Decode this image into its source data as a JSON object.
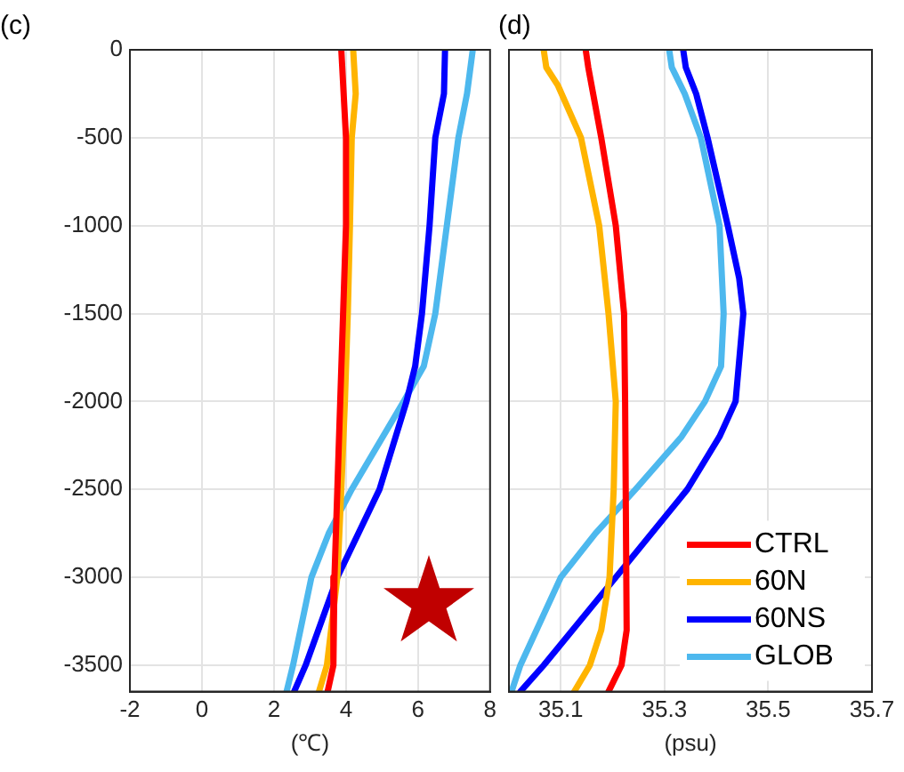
{
  "chart_data": [
    {
      "type": "line",
      "title": "(c)",
      "xlabel": "(℃)",
      "xlim": [
        -2,
        8
      ],
      "xticks": [
        -2,
        0,
        2,
        4,
        6,
        8
      ],
      "ylim": [
        -3650,
        0
      ],
      "yticks": [
        -3500,
        -3000,
        -2500,
        -2000,
        -1500,
        -1000,
        -500,
        0
      ],
      "grid": true,
      "legend": false,
      "marker": "none",
      "line_style": "solid",
      "series": [
        {
          "color": "#ff0000",
          "x": [
            3.87,
            4.0,
            4.0,
            3.92,
            3.84,
            3.76,
            3.68,
            3.65,
            3.49
          ],
          "values": [
            0,
            -500,
            -1000,
            -1500,
            -2000,
            -2500,
            -3000,
            -3500,
            -3650
          ]
        },
        {
          "color": "#ffb400",
          "x": [
            4.2,
            4.27,
            4.16,
            4.11,
            4.05,
            3.97,
            3.87,
            3.76,
            3.47,
            3.25
          ],
          "values": [
            0,
            -250,
            -500,
            -1000,
            -1500,
            -2000,
            -2500,
            -3000,
            -3500,
            -3650
          ]
        },
        {
          "color": "#0000ff",
          "x": [
            6.75,
            6.72,
            6.48,
            6.32,
            6.11,
            5.92,
            5.68,
            4.93,
            3.76,
            2.88,
            2.56
          ],
          "values": [
            0,
            -250,
            -500,
            -1000,
            -1500,
            -1800,
            -2000,
            -2500,
            -3000,
            -3500,
            -3650
          ]
        },
        {
          "color": "#4db8ee",
          "x": [
            7.52,
            7.36,
            7.12,
            6.8,
            6.48,
            6.16,
            5.6,
            4.16,
            3.52,
            3.04,
            2.53,
            2.35
          ],
          "values": [
            0,
            -250,
            -500,
            -1000,
            -1500,
            -1800,
            -2000,
            -2500,
            -2750,
            -3000,
            -3500,
            -3650
          ]
        }
      ]
    },
    {
      "type": "line",
      "title": "(d)",
      "xlabel": "(psu)",
      "xlim": [
        35.0,
        35.7
      ],
      "xticks": [
        35.1,
        35.3,
        35.5,
        35.7
      ],
      "ylim": [
        -3650,
        0
      ],
      "yticks": [
        -3500,
        -3000,
        -2500,
        -2000,
        -1500,
        -1000,
        -500,
        0
      ],
      "tick_labels": "x",
      "grid": true,
      "legend": "bottom right",
      "marker": "none",
      "line_style": "solid",
      "series": [
        {
          "name": "CTRL",
          "color": "#ff0000",
          "x": [
            35.148,
            35.153,
            35.178,
            35.206,
            35.222,
            35.224,
            35.227,
            35.217,
            35.192
          ],
          "values": [
            0,
            -100,
            -500,
            -1000,
            -1500,
            -2000,
            -3300,
            -3500,
            -3650
          ]
        },
        {
          "name": "60N",
          "color": "#ffb400",
          "x": [
            35.067,
            35.072,
            35.094,
            35.139,
            35.174,
            35.192,
            35.206,
            35.202,
            35.194,
            35.178,
            35.156,
            35.126
          ],
          "values": [
            0,
            -100,
            -200,
            -500,
            -1000,
            -1500,
            -2000,
            -2500,
            -3000,
            -3300,
            -3500,
            -3650
          ]
        },
        {
          "name": "60NS",
          "color": "#0000ff",
          "x": [
            35.336,
            35.341,
            35.361,
            35.383,
            35.422,
            35.444,
            35.452,
            35.437,
            35.406,
            35.344,
            35.206,
            35.067,
            35.022
          ],
          "values": [
            0,
            -100,
            -250,
            -500,
            -1000,
            -1300,
            -1500,
            -2000,
            -2200,
            -2500,
            -3000,
            -3500,
            -3650
          ]
        },
        {
          "name": "GLOB",
          "color": "#4db8ee",
          "x": [
            35.309,
            35.314,
            35.339,
            35.37,
            35.406,
            35.414,
            35.409,
            35.378,
            35.333,
            35.244,
            35.167,
            35.1,
            35.022,
            35.005
          ],
          "values": [
            0,
            -100,
            -250,
            -500,
            -1000,
            -1500,
            -1800,
            -2000,
            -2200,
            -2500,
            -2750,
            -3000,
            -3500,
            -3650
          ]
        }
      ]
    }
  ]
}
